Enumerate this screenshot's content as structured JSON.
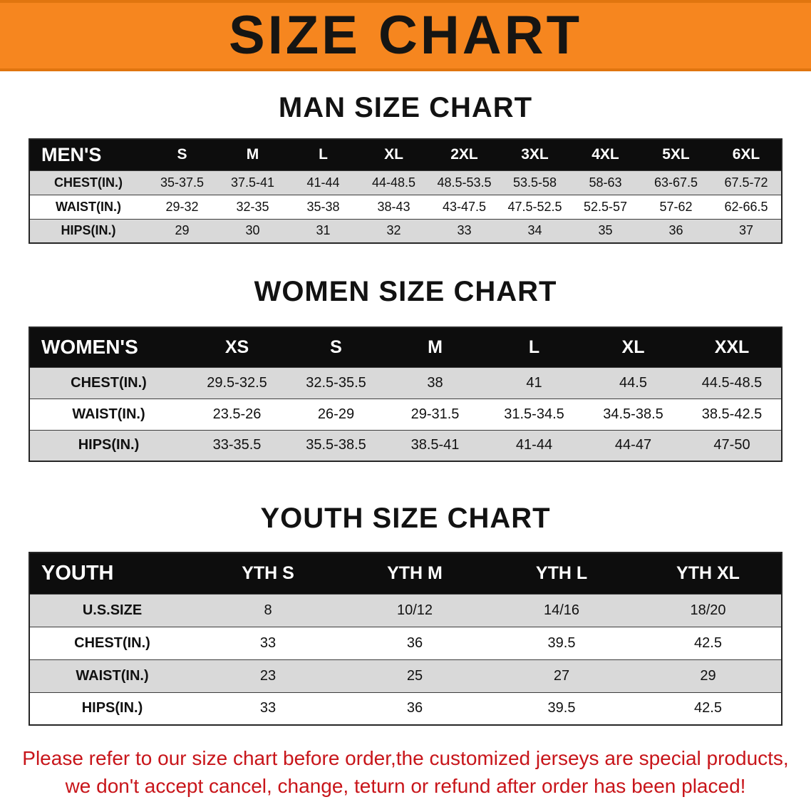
{
  "banner": {
    "title": "SIZE CHART"
  },
  "sections": [
    {
      "heading": "MAN SIZE CHART",
      "table": {
        "name": "mens-size-table",
        "header": [
          "MEN'S",
          "S",
          "M",
          "L",
          "XL",
          "2XL",
          "3XL",
          "4XL",
          "5XL",
          "6XL"
        ],
        "rows": [
          [
            "CHEST(IN.)",
            "35-37.5",
            "37.5-41",
            "41-44",
            "44-48.5",
            "48.5-53.5",
            "53.5-58",
            "58-63",
            "63-67.5",
            "67.5-72"
          ],
          [
            "WAIST(IN.)",
            "29-32",
            "32-35",
            "35-38",
            "38-43",
            "43-47.5",
            "47.5-52.5",
            "52.5-57",
            "57-62",
            "62-66.5"
          ],
          [
            "HIPS(IN.)",
            "29",
            "30",
            "31",
            "32",
            "33",
            "34",
            "35",
            "36",
            "37"
          ]
        ]
      }
    },
    {
      "heading": "WOMEN SIZE CHART",
      "table": {
        "name": "womens-size-table",
        "header": [
          "WOMEN'S",
          "XS",
          "S",
          "M",
          "L",
          "XL",
          "XXL"
        ],
        "rows": [
          [
            "CHEST(IN.)",
            "29.5-32.5",
            "32.5-35.5",
            "38",
            "41",
            "44.5",
            "44.5-48.5"
          ],
          [
            "WAIST(IN.)",
            "23.5-26",
            "26-29",
            "29-31.5",
            "31.5-34.5",
            "34.5-38.5",
            "38.5-42.5"
          ],
          [
            "HIPS(IN.)",
            "33-35.5",
            "35.5-38.5",
            "38.5-41",
            "41-44",
            "44-47",
            "47-50"
          ]
        ]
      }
    },
    {
      "heading": "YOUTH SIZE CHART",
      "table": {
        "name": "youth-size-table",
        "header": [
          "YOUTH",
          "YTH S",
          "YTH M",
          "YTH L",
          "YTH XL"
        ],
        "rows": [
          [
            "U.S.SIZE",
            "8",
            "10/12",
            "14/16",
            "18/20"
          ],
          [
            "CHEST(IN.)",
            "33",
            "36",
            "39.5",
            "42.5"
          ],
          [
            "WAIST(IN.)",
            "23",
            "25",
            "27",
            "29"
          ],
          [
            "HIPS(IN.)",
            "33",
            "36",
            "39.5",
            "42.5"
          ]
        ]
      }
    }
  ],
  "notice": {
    "line1": "Please refer to our size chart before order,the customized jerseys are special products,",
    "line2": "we don't accept cancel, change, teturn or refund after order has been placed!"
  },
  "colors": {
    "banner_bg": "#f6861f",
    "banner_edge": "#e0750f",
    "table_header_bg": "#0d0d0d",
    "alt_row_bg": "#d9d9d9",
    "notice_text": "#c8151a"
  }
}
